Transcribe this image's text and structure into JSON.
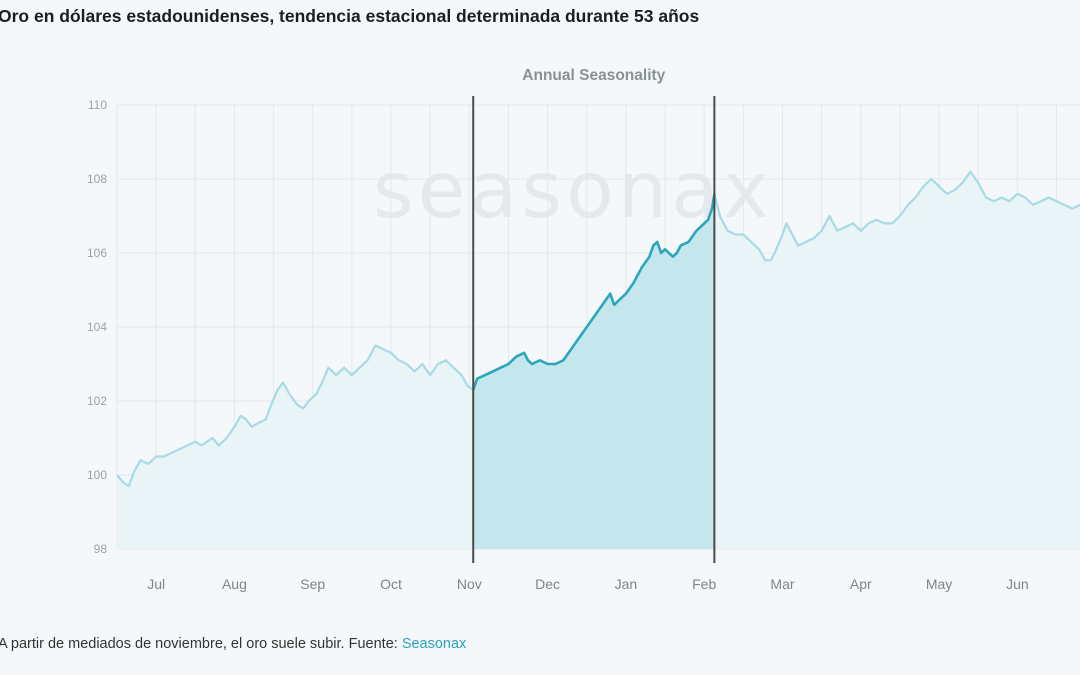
{
  "page": {
    "title": "Oro en dólares estadounidenses, tendencia estacional determinada durante 53 años",
    "caption_text": "A partir de mediados de noviembre, el oro suele subir. Fuente: ",
    "caption_link": "Seasonax"
  },
  "chart_data": {
    "type": "line",
    "title": "Annual Seasonality",
    "watermark": "seasonax",
    "xlabel": "",
    "ylabel": "",
    "x_axis": {
      "min": 0,
      "max": 12.3,
      "unit": "months from start of Jul"
    },
    "ylim": [
      98,
      110
    ],
    "yticks": [
      98,
      100,
      102,
      104,
      106,
      108,
      110
    ],
    "month_ticks": [
      {
        "label": "Jul",
        "x": 0.5
      },
      {
        "label": "Aug",
        "x": 1.5
      },
      {
        "label": "Sep",
        "x": 2.5
      },
      {
        "label": "Oct",
        "x": 3.5
      },
      {
        "label": "Nov",
        "x": 4.5
      },
      {
        "label": "Dec",
        "x": 5.5
      },
      {
        "label": "Jan",
        "x": 6.5
      },
      {
        "label": "Feb",
        "x": 7.5
      },
      {
        "label": "Mar",
        "x": 8.5
      },
      {
        "label": "Apr",
        "x": 9.5
      },
      {
        "label": "May",
        "x": 10.5
      },
      {
        "label": "Jun",
        "x": 11.5
      }
    ],
    "grid": true,
    "highlight_window": {
      "start": 4.55,
      "end": 7.63
    },
    "colors": {
      "line_faded": "#a6dbe6",
      "line_highlight": "#2ba6bd",
      "fill_faded": "#e9f4f6",
      "fill_highlight": "#c4e6ed",
      "window_border": "#4a4a4a",
      "grid": "#e2e8ec",
      "tick_label": "#9aa3a8",
      "title": "#8a9196",
      "accent": "#2aa3b8"
    },
    "series": [
      {
        "points": [
          [
            0.0,
            100.0
          ],
          [
            0.08,
            99.8
          ],
          [
            0.15,
            99.7
          ],
          [
            0.22,
            100.1
          ],
          [
            0.3,
            100.4
          ],
          [
            0.4,
            100.3
          ],
          [
            0.5,
            100.5
          ],
          [
            0.6,
            100.5
          ],
          [
            0.7,
            100.6
          ],
          [
            0.8,
            100.7
          ],
          [
            0.9,
            100.8
          ],
          [
            1.0,
            100.9
          ],
          [
            1.08,
            100.8
          ],
          [
            1.15,
            100.9
          ],
          [
            1.22,
            101.0
          ],
          [
            1.3,
            100.8
          ],
          [
            1.4,
            101.0
          ],
          [
            1.5,
            101.3
          ],
          [
            1.58,
            101.6
          ],
          [
            1.65,
            101.5
          ],
          [
            1.72,
            101.3
          ],
          [
            1.8,
            101.4
          ],
          [
            1.9,
            101.5
          ],
          [
            1.97,
            101.9
          ],
          [
            2.05,
            102.3
          ],
          [
            2.12,
            102.5
          ],
          [
            2.2,
            102.2
          ],
          [
            2.3,
            101.9
          ],
          [
            2.38,
            101.8
          ],
          [
            2.45,
            102.0
          ],
          [
            2.55,
            102.2
          ],
          [
            2.62,
            102.5
          ],
          [
            2.7,
            102.9
          ],
          [
            2.8,
            102.7
          ],
          [
            2.9,
            102.9
          ],
          [
            3.0,
            102.7
          ],
          [
            3.1,
            102.9
          ],
          [
            3.2,
            103.1
          ],
          [
            3.3,
            103.5
          ],
          [
            3.4,
            103.4
          ],
          [
            3.5,
            103.3
          ],
          [
            3.6,
            103.1
          ],
          [
            3.7,
            103.0
          ],
          [
            3.8,
            102.8
          ],
          [
            3.9,
            103.0
          ],
          [
            4.0,
            102.7
          ],
          [
            4.1,
            103.0
          ],
          [
            4.2,
            103.1
          ],
          [
            4.3,
            102.9
          ],
          [
            4.4,
            102.7
          ],
          [
            4.48,
            102.4
          ],
          [
            4.55,
            102.3
          ],
          [
            4.6,
            102.6
          ],
          [
            4.7,
            102.7
          ],
          [
            4.8,
            102.8
          ],
          [
            4.9,
            102.9
          ],
          [
            5.0,
            103.0
          ],
          [
            5.1,
            103.2
          ],
          [
            5.2,
            103.3
          ],
          [
            5.25,
            103.1
          ],
          [
            5.3,
            103.0
          ],
          [
            5.4,
            103.1
          ],
          [
            5.5,
            103.0
          ],
          [
            5.6,
            103.0
          ],
          [
            5.7,
            103.1
          ],
          [
            5.8,
            103.4
          ],
          [
            5.9,
            103.7
          ],
          [
            6.0,
            104.0
          ],
          [
            6.1,
            104.3
          ],
          [
            6.2,
            104.6
          ],
          [
            6.3,
            104.9
          ],
          [
            6.35,
            104.6
          ],
          [
            6.4,
            104.7
          ],
          [
            6.5,
            104.9
          ],
          [
            6.6,
            105.2
          ],
          [
            6.7,
            105.6
          ],
          [
            6.8,
            105.9
          ],
          [
            6.85,
            106.2
          ],
          [
            6.9,
            106.3
          ],
          [
            6.95,
            106.0
          ],
          [
            7.0,
            106.1
          ],
          [
            7.1,
            105.9
          ],
          [
            7.15,
            106.0
          ],
          [
            7.2,
            106.2
          ],
          [
            7.3,
            106.3
          ],
          [
            7.4,
            106.6
          ],
          [
            7.5,
            106.8
          ],
          [
            7.55,
            106.9
          ],
          [
            7.6,
            107.2
          ],
          [
            7.63,
            107.6
          ],
          [
            7.7,
            107.0
          ],
          [
            7.8,
            106.6
          ],
          [
            7.9,
            106.5
          ],
          [
            8.0,
            106.5
          ],
          [
            8.1,
            106.3
          ],
          [
            8.2,
            106.1
          ],
          [
            8.28,
            105.8
          ],
          [
            8.35,
            105.8
          ],
          [
            8.4,
            106.0
          ],
          [
            8.5,
            106.5
          ],
          [
            8.55,
            106.8
          ],
          [
            8.6,
            106.6
          ],
          [
            8.7,
            106.2
          ],
          [
            8.8,
            106.3
          ],
          [
            8.9,
            106.4
          ],
          [
            9.0,
            106.6
          ],
          [
            9.1,
            107.0
          ],
          [
            9.15,
            106.8
          ],
          [
            9.2,
            106.6
          ],
          [
            9.3,
            106.7
          ],
          [
            9.4,
            106.8
          ],
          [
            9.5,
            106.6
          ],
          [
            9.6,
            106.8
          ],
          [
            9.7,
            106.9
          ],
          [
            9.8,
            106.8
          ],
          [
            9.9,
            106.8
          ],
          [
            10.0,
            107.0
          ],
          [
            10.1,
            107.3
          ],
          [
            10.2,
            107.5
          ],
          [
            10.3,
            107.8
          ],
          [
            10.4,
            108.0
          ],
          [
            10.5,
            107.8
          ],
          [
            10.6,
            107.6
          ],
          [
            10.7,
            107.7
          ],
          [
            10.8,
            107.9
          ],
          [
            10.9,
            108.2
          ],
          [
            11.0,
            107.9
          ],
          [
            11.1,
            107.5
          ],
          [
            11.2,
            107.4
          ],
          [
            11.3,
            107.5
          ],
          [
            11.4,
            107.4
          ],
          [
            11.5,
            107.6
          ],
          [
            11.6,
            107.5
          ],
          [
            11.7,
            107.3
          ],
          [
            11.8,
            107.4
          ],
          [
            11.9,
            107.5
          ],
          [
            12.0,
            107.4
          ],
          [
            12.1,
            107.3
          ],
          [
            12.2,
            107.2
          ],
          [
            12.3,
            107.3
          ]
        ]
      }
    ]
  }
}
